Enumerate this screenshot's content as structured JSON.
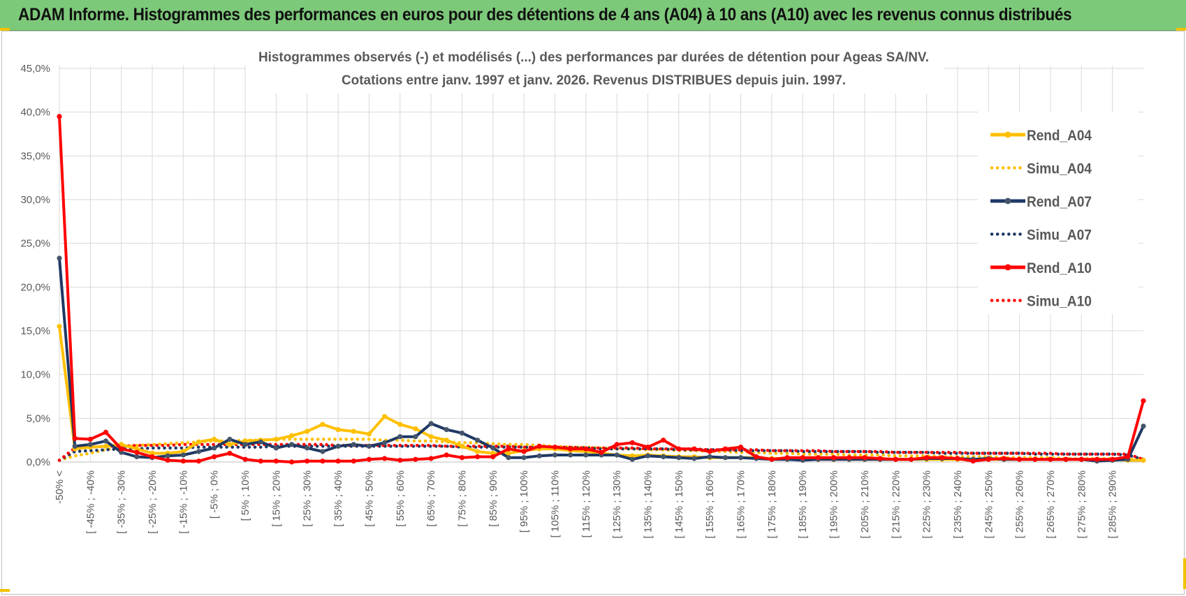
{
  "header": {
    "title": "ADAM Informe. Histogrammes des performances en euros pour des détentions de 4 ans (A04) à 10 ans (A10) avec les revenus connus distribués"
  },
  "colors": {
    "header_bg": "#7dc97a",
    "A04": "#ffc000",
    "A07": "#1f3864",
    "A10": "#ff0000",
    "grid": "#d9d9d9",
    "text": "#595959"
  },
  "chart_data": {
    "type": "line",
    "title": "Histogrammes observés (-) et modélisés (...) des performances par durées de détention pour Ageas SA/NV.",
    "subtitle": "Cotations entre janv. 1997 et janv. 2026. Revenus DISTRIBUES depuis juin. 1997.",
    "xlabel": "",
    "ylabel": "",
    "ylim": [
      0,
      45
    ],
    "y_ticks": [
      "0,0%",
      "5,0%",
      "10,0%",
      "15,0%",
      "20,0%",
      "25,0%",
      "30,0%",
      "35,0%",
      "40,0%",
      "45,0%"
    ],
    "x_tick_labels": [
      "-50% <",
      "[ -45% ; -40%",
      "[ -35% ; -30%",
      "[ -25% ; -20%",
      "[ -15% ; -10%",
      "[ -5% ; 0%",
      "[ 5% ; 10%",
      "[ 15% ; 20%",
      "[ 25% ; 30%",
      "[ 35% ; 40%",
      "[ 45% ; 50%",
      "[ 55% ; 60%",
      "[ 65% ; 70%",
      "[ 75% ; 80%",
      "[ 85% ; 90%",
      "[ 95% ; 100%",
      "[ 105% ; 110%",
      "[ 115% ; 120%",
      "[ 125% ; 130%",
      "[ 135% ; 140%",
      "[ 145% ; 150%",
      "[ 155% ; 160%",
      "[ 165% ; 170%",
      "[ 175% ; 180%",
      "[ 185% ; 190%",
      "[ 195% ; 200%",
      "[ 205% ; 210%",
      "[ 215% ; 220%",
      "[ 225% ; 230%",
      "[ 235% ; 240%",
      "[ 245% ; 250%",
      "[ 255% ; 260%",
      "[ 265% ; 270%",
      "[ 275% ; 280%",
      "[ 285% ; 290%"
    ],
    "legend_position": "right",
    "series": [
      {
        "name": "Rend_A04",
        "style": "solid",
        "color": "#ffc000",
        "values": [
          15.5,
          1.5,
          1.7,
          1.8,
          2.0,
          1.5,
          1.0,
          1.0,
          1.2,
          2.3,
          2.6,
          2.0,
          2.4,
          2.5,
          2.6,
          3.0,
          3.5,
          4.3,
          3.7,
          3.5,
          3.2,
          5.2,
          4.3,
          3.8,
          2.9,
          2.5,
          1.8,
          1.2,
          1.0,
          1.0,
          1.3,
          1.5,
          1.5,
          1.3,
          1.2,
          1.0,
          0.8,
          0.7,
          0.8,
          0.7,
          0.6,
          0.6,
          0.5,
          0.5,
          0.5,
          0.5,
          0.4,
          0.4,
          0.4,
          0.3,
          0.3,
          0.3,
          0.3,
          0.3,
          0.3,
          0.3,
          0.3,
          0.3,
          0.3,
          0.3,
          0.3,
          0.3,
          0.3,
          0.3,
          0.3,
          0.3,
          0.3,
          0.3,
          0.3,
          0.2,
          0.2
        ]
      },
      {
        "name": "Simu_A04",
        "style": "dotted",
        "color": "#ffc000",
        "values": [
          0.2,
          0.7,
          1.0,
          1.4,
          1.7,
          1.9,
          2.0,
          2.1,
          2.2,
          2.3,
          2.4,
          2.4,
          2.5,
          2.5,
          2.6,
          2.6,
          2.6,
          2.6,
          2.6,
          2.6,
          2.6,
          2.5,
          2.5,
          2.4,
          2.4,
          2.3,
          2.2,
          2.2,
          2.1,
          2.0,
          2.0,
          1.9,
          1.8,
          1.7,
          1.7,
          1.6,
          1.5,
          1.5,
          1.4,
          1.4,
          1.3,
          1.3,
          1.2,
          1.2,
          1.1,
          1.1,
          1.0,
          1.0,
          0.9,
          0.9,
          0.9,
          0.8,
          0.8,
          0.8,
          0.7,
          0.7,
          0.7,
          0.6,
          0.6,
          0.6,
          0.6,
          0.5,
          0.5,
          0.5,
          0.5,
          0.4,
          0.4,
          0.4,
          0.4,
          0.3,
          0.3
        ]
      },
      {
        "name": "Rend_A07",
        "style": "solid",
        "color": "#1f3864",
        "values": [
          23.3,
          1.8,
          2.0,
          2.4,
          1.1,
          0.6,
          0.5,
          0.7,
          0.8,
          1.2,
          1.6,
          2.6,
          2.0,
          2.3,
          1.6,
          2.0,
          1.6,
          1.2,
          1.8,
          2.0,
          1.8,
          2.2,
          2.9,
          2.9,
          4.4,
          3.7,
          3.3,
          2.5,
          1.6,
          0.5,
          0.5,
          0.7,
          0.8,
          0.8,
          0.8,
          0.8,
          0.8,
          0.3,
          0.7,
          0.6,
          0.5,
          0.4,
          0.6,
          0.5,
          0.5,
          0.4,
          0.3,
          0.3,
          0.2,
          0.3,
          0.3,
          0.3,
          0.3,
          0.3,
          0.3,
          0.3,
          0.4,
          0.4,
          0.4,
          0.3,
          0.4,
          0.3,
          0.3,
          0.3,
          0.3,
          0.3,
          0.3,
          0.1,
          0.2,
          0.3,
          4.1
        ]
      },
      {
        "name": "Simu_A07",
        "style": "dotted",
        "color": "#1f3864",
        "values": [
          0.2,
          1.2,
          1.3,
          1.4,
          1.5,
          1.5,
          1.6,
          1.6,
          1.6,
          1.7,
          1.7,
          1.7,
          1.7,
          1.7,
          1.8,
          1.8,
          1.8,
          1.8,
          1.8,
          1.8,
          1.8,
          1.8,
          1.8,
          1.8,
          1.8,
          1.8,
          1.7,
          1.7,
          1.7,
          1.7,
          1.7,
          1.6,
          1.6,
          1.6,
          1.6,
          1.5,
          1.5,
          1.5,
          1.5,
          1.5,
          1.4,
          1.4,
          1.4,
          1.4,
          1.3,
          1.3,
          1.3,
          1.3,
          1.2,
          1.2,
          1.2,
          1.2,
          1.2,
          1.1,
          1.1,
          1.1,
          1.1,
          1.0,
          1.0,
          1.0,
          1.0,
          1.0,
          1.0,
          0.9,
          0.9,
          0.9,
          0.9,
          0.9,
          0.9,
          0.8,
          0.3
        ]
      },
      {
        "name": "Rend_A10",
        "style": "solid",
        "color": "#ff0000",
        "values": [
          39.5,
          2.7,
          2.6,
          3.4,
          1.5,
          1.1,
          0.6,
          0.2,
          0.1,
          0.1,
          0.6,
          1.0,
          0.3,
          0.1,
          0.1,
          0.0,
          0.1,
          0.1,
          0.1,
          0.1,
          0.3,
          0.4,
          0.2,
          0.3,
          0.4,
          0.8,
          0.5,
          0.6,
          0.6,
          1.5,
          1.2,
          1.8,
          1.7,
          1.5,
          1.5,
          1.1,
          2.0,
          2.2,
          1.7,
          2.5,
          1.5,
          1.5,
          1.2,
          1.5,
          1.7,
          0.6,
          0.3,
          0.5,
          0.5,
          0.5,
          0.5,
          0.5,
          0.5,
          0.4,
          0.3,
          0.3,
          0.5,
          0.5,
          0.4,
          0.1,
          0.3,
          0.4,
          0.3,
          0.3,
          0.3,
          0.3,
          0.3,
          0.3,
          0.3,
          0.6,
          7.0
        ]
      },
      {
        "name": "Simu_A10",
        "style": "dotted",
        "color": "#ff0000",
        "values": [
          0.2,
          1.6,
          1.7,
          1.8,
          1.8,
          1.9,
          1.9,
          1.9,
          2.0,
          2.0,
          2.0,
          2.0,
          2.0,
          2.0,
          2.0,
          2.0,
          2.0,
          2.0,
          1.9,
          1.9,
          1.9,
          1.9,
          1.9,
          1.9,
          1.9,
          1.8,
          1.8,
          1.8,
          1.8,
          1.8,
          1.7,
          1.7,
          1.7,
          1.7,
          1.6,
          1.6,
          1.6,
          1.6,
          1.5,
          1.5,
          1.5,
          1.5,
          1.4,
          1.4,
          1.4,
          1.4,
          1.3,
          1.3,
          1.3,
          1.3,
          1.2,
          1.2,
          1.2,
          1.2,
          1.1,
          1.1,
          1.1,
          1.1,
          1.1,
          1.0,
          1.0,
          1.0,
          1.0,
          1.0,
          1.0,
          0.9,
          0.9,
          0.9,
          0.9,
          0.9,
          0.3
        ]
      }
    ]
  }
}
